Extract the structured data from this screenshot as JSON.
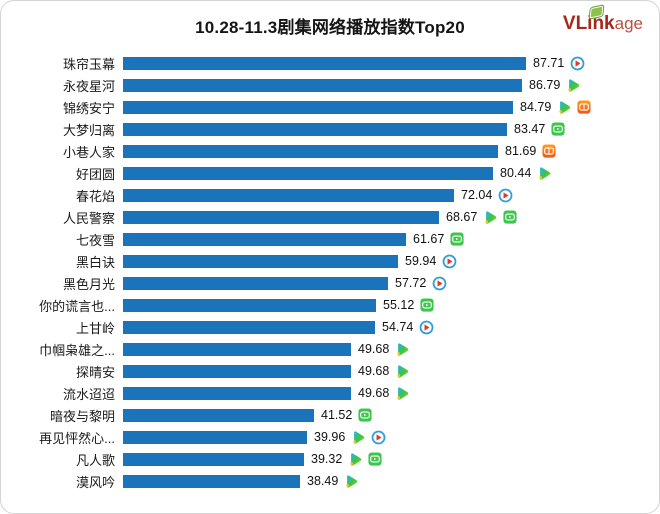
{
  "header": {
    "title": "10.28-11.3剧集网络播放指数Top20",
    "logo": {
      "text_primary": "VLink",
      "text_secondary": "age"
    }
  },
  "chart_data": {
    "type": "bar",
    "orientation": "horizontal",
    "title": "10.28-11.3剧集网络播放指数Top20",
    "bar_color": "#1b74b9",
    "xlim": [
      0,
      90
    ],
    "gridlines": false,
    "axis_labels_visible": false,
    "categories": [
      "珠帘玉幕",
      "永夜星河",
      "锦绣安宁",
      "大梦归离",
      "小巷人家",
      "好团圆",
      "春花焰",
      "人民警察",
      "七夜雪",
      "黑白诀",
      "黑色月光",
      "你的谎言也...",
      "上甘岭",
      "巾帼枭雄之...",
      "探晴安",
      "流水迢迢",
      "暗夜与黎明",
      "再见怦然心...",
      "凡人歌",
      "漠风吟"
    ],
    "values": [
      87.71,
      86.79,
      84.79,
      83.47,
      81.69,
      80.44,
      72.04,
      68.67,
      61.67,
      59.94,
      57.72,
      55.12,
      54.74,
      49.68,
      49.68,
      49.68,
      41.52,
      39.96,
      39.32,
      38.49
    ],
    "rows": [
      {
        "label": "珠帘玉幕",
        "value": 87.71,
        "platform_icons": [
          "youku-icon"
        ]
      },
      {
        "label": "永夜星河",
        "value": 86.79,
        "platform_icons": [
          "tencent-video-icon"
        ]
      },
      {
        "label": "锦绣安宁",
        "value": 84.79,
        "platform_icons": [
          "tencent-video-icon",
          "mango-tv-icon"
        ]
      },
      {
        "label": "大梦归离",
        "value": 83.47,
        "platform_icons": [
          "iqiyi-icon"
        ]
      },
      {
        "label": "小巷人家",
        "value": 81.69,
        "platform_icons": [
          "mango-tv-icon"
        ]
      },
      {
        "label": "好团圆",
        "value": 80.44,
        "platform_icons": [
          "tencent-video-icon"
        ]
      },
      {
        "label": "春花焰",
        "value": 72.04,
        "platform_icons": [
          "youku-icon"
        ]
      },
      {
        "label": "人民警察",
        "value": 68.67,
        "platform_icons": [
          "tencent-video-icon",
          "iqiyi-icon"
        ]
      },
      {
        "label": "七夜雪",
        "value": 61.67,
        "platform_icons": [
          "iqiyi-icon"
        ]
      },
      {
        "label": "黑白诀",
        "value": 59.94,
        "platform_icons": [
          "youku-icon"
        ]
      },
      {
        "label": "黑色月光",
        "value": 57.72,
        "platform_icons": [
          "youku-icon"
        ]
      },
      {
        "label": "你的谎言也...",
        "value": 55.12,
        "platform_icons": [
          "iqiyi-icon"
        ]
      },
      {
        "label": "上甘岭",
        "value": 54.74,
        "platform_icons": [
          "youku-icon"
        ]
      },
      {
        "label": "巾帼枭雄之...",
        "value": 49.68,
        "platform_icons": [
          "tencent-video-icon"
        ]
      },
      {
        "label": "探晴安",
        "value": 49.68,
        "platform_icons": [
          "tencent-video-icon"
        ]
      },
      {
        "label": "流水迢迢",
        "value": 49.68,
        "platform_icons": [
          "tencent-video-icon"
        ]
      },
      {
        "label": "暗夜与黎明",
        "value": 41.52,
        "platform_icons": [
          "iqiyi-icon"
        ]
      },
      {
        "label": "再见怦然心...",
        "value": 39.96,
        "platform_icons": [
          "tencent-video-icon",
          "youku-icon"
        ]
      },
      {
        "label": "凡人歌",
        "value": 39.32,
        "platform_icons": [
          "tencent-video-icon",
          "iqiyi-icon"
        ]
      },
      {
        "label": "漠风吟",
        "value": 38.49,
        "platform_icons": [
          "tencent-video-icon"
        ]
      }
    ]
  }
}
